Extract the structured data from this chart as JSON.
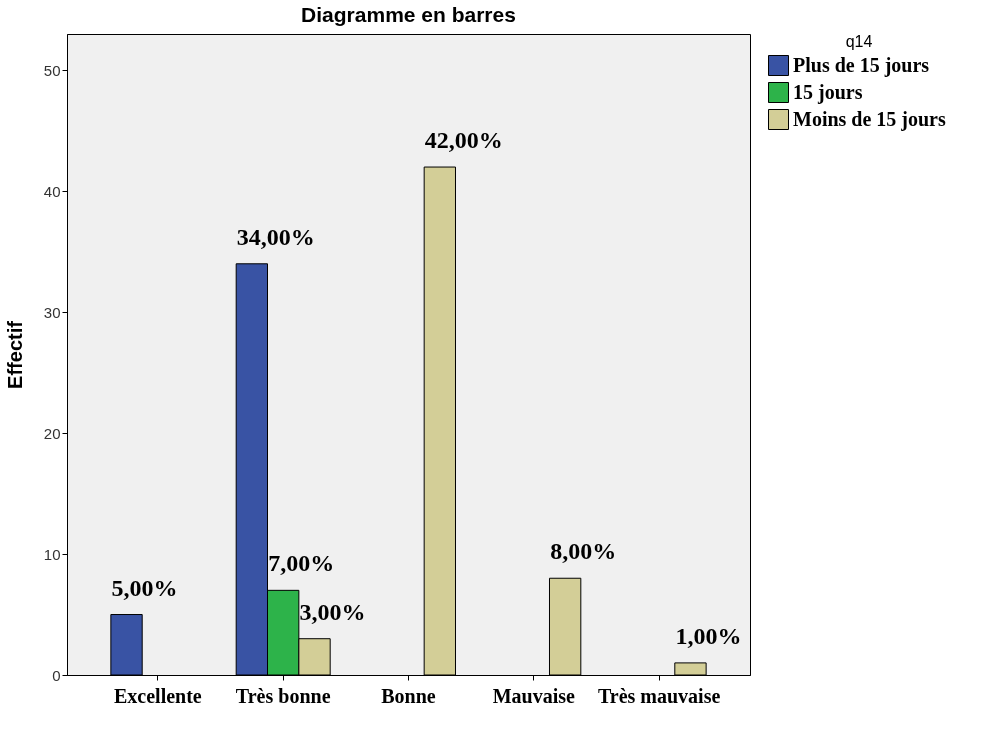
{
  "chart_data": {
    "type": "bar",
    "title": "Diagramme en barres",
    "ylabel": "Effectif",
    "legend_title": "q14",
    "legend": "right",
    "grid": false,
    "categories": [
      "Excellente",
      "Très bonne",
      "Bonne",
      "Mauvaise",
      "Très mauvaise"
    ],
    "ylim": [
      0,
      53
    ],
    "yticks": [
      0,
      10,
      20,
      30,
      40,
      50
    ],
    "series": [
      {
        "name": "Plus de 15  jours",
        "color": "#3953a4",
        "values": [
          5,
          34,
          null,
          null,
          null
        ],
        "value_labels": [
          "5,00%",
          "34,00%",
          null,
          null,
          null
        ]
      },
      {
        "name": "15 jours",
        "color": "#2db34a",
        "values": [
          null,
          7,
          null,
          null,
          null
        ],
        "value_labels": [
          null,
          "7,00%",
          null,
          null,
          null
        ]
      },
      {
        "name": "Moins de 15  jours",
        "color": "#d3ce97",
        "values": [
          null,
          3,
          42,
          8,
          1
        ],
        "value_labels": [
          null,
          "3,00%",
          "42,00%",
          "8,00%",
          "1,00%"
        ]
      }
    ]
  }
}
